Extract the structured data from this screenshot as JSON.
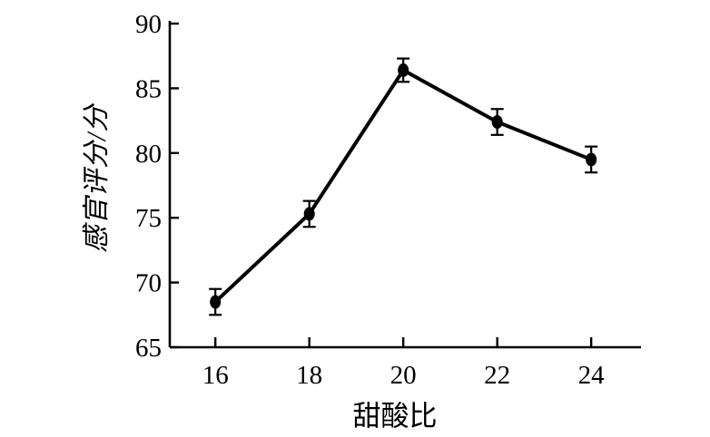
{
  "chart_data": {
    "type": "line",
    "title": "",
    "xlabel": "甜酸比",
    "ylabel": "感官评分/分",
    "x": [
      16,
      18,
      20,
      22,
      24
    ],
    "series": [
      {
        "name": "感官评分",
        "values": [
          68.5,
          75.3,
          86.4,
          82.4,
          79.5
        ],
        "errors": [
          1.0,
          1.0,
          0.9,
          1.0,
          1.0
        ]
      }
    ],
    "xticks": [
      16,
      18,
      20,
      22,
      24
    ],
    "yticks": [
      65,
      70,
      75,
      80,
      85,
      90
    ],
    "xlim": [
      15.03,
      25.06
    ],
    "ylim": [
      65,
      90
    ],
    "grid": false,
    "legend": "none",
    "line_color": "#000000",
    "marker": "filled-circle",
    "error_bars": true,
    "background_color": "#ffffff",
    "text_color": "#000000"
  }
}
